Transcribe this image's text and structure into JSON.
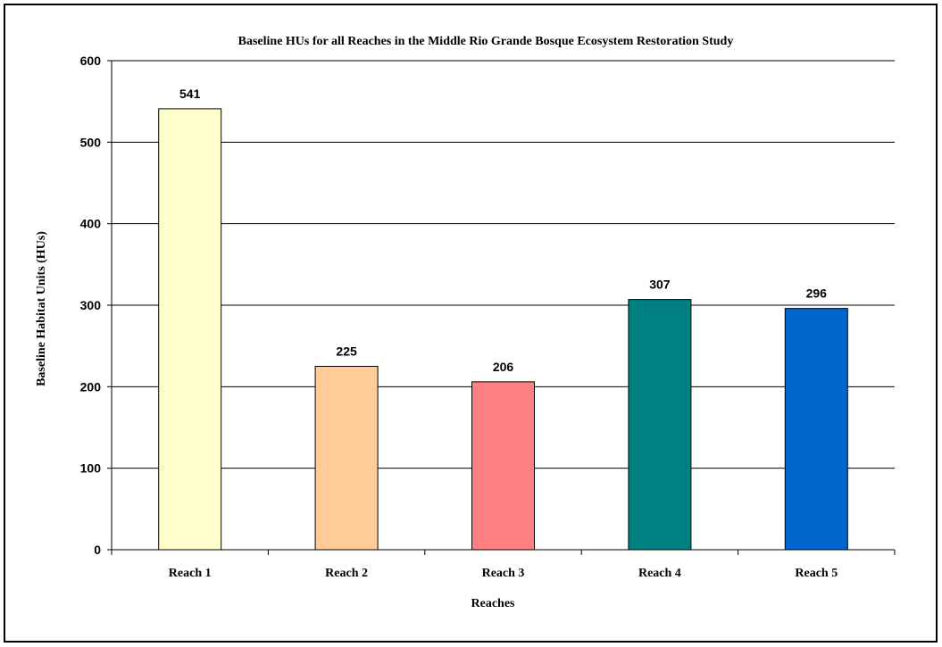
{
  "chart_data": {
    "type": "bar",
    "title": "Baseline HUs for all Reaches in the Middle Rio Grande Bosque Ecosystem Restoration Study",
    "xlabel": "Reaches",
    "ylabel": "Baseline Habitat Units (HUs)",
    "categories": [
      "Reach 1",
      "Reach 2",
      "Reach 3",
      "Reach 4",
      "Reach 5"
    ],
    "values": [
      541,
      225,
      206,
      307,
      296
    ],
    "data_labels": [
      "541",
      "225",
      "206",
      "307",
      "296"
    ],
    "bar_colors": [
      "#FFFFCC",
      "#FFCC99",
      "#FF8080",
      "#008080",
      "#0066CC"
    ],
    "ylim": [
      0,
      600
    ],
    "yticks": [
      0,
      100,
      200,
      300,
      400,
      500,
      600
    ],
    "ytick_labels": [
      "0",
      "100",
      "200",
      "300",
      "400",
      "500",
      "600"
    ],
    "grid": true,
    "legend": "none",
    "plot_background": "#ffffff",
    "gridline_color": "#000000"
  }
}
